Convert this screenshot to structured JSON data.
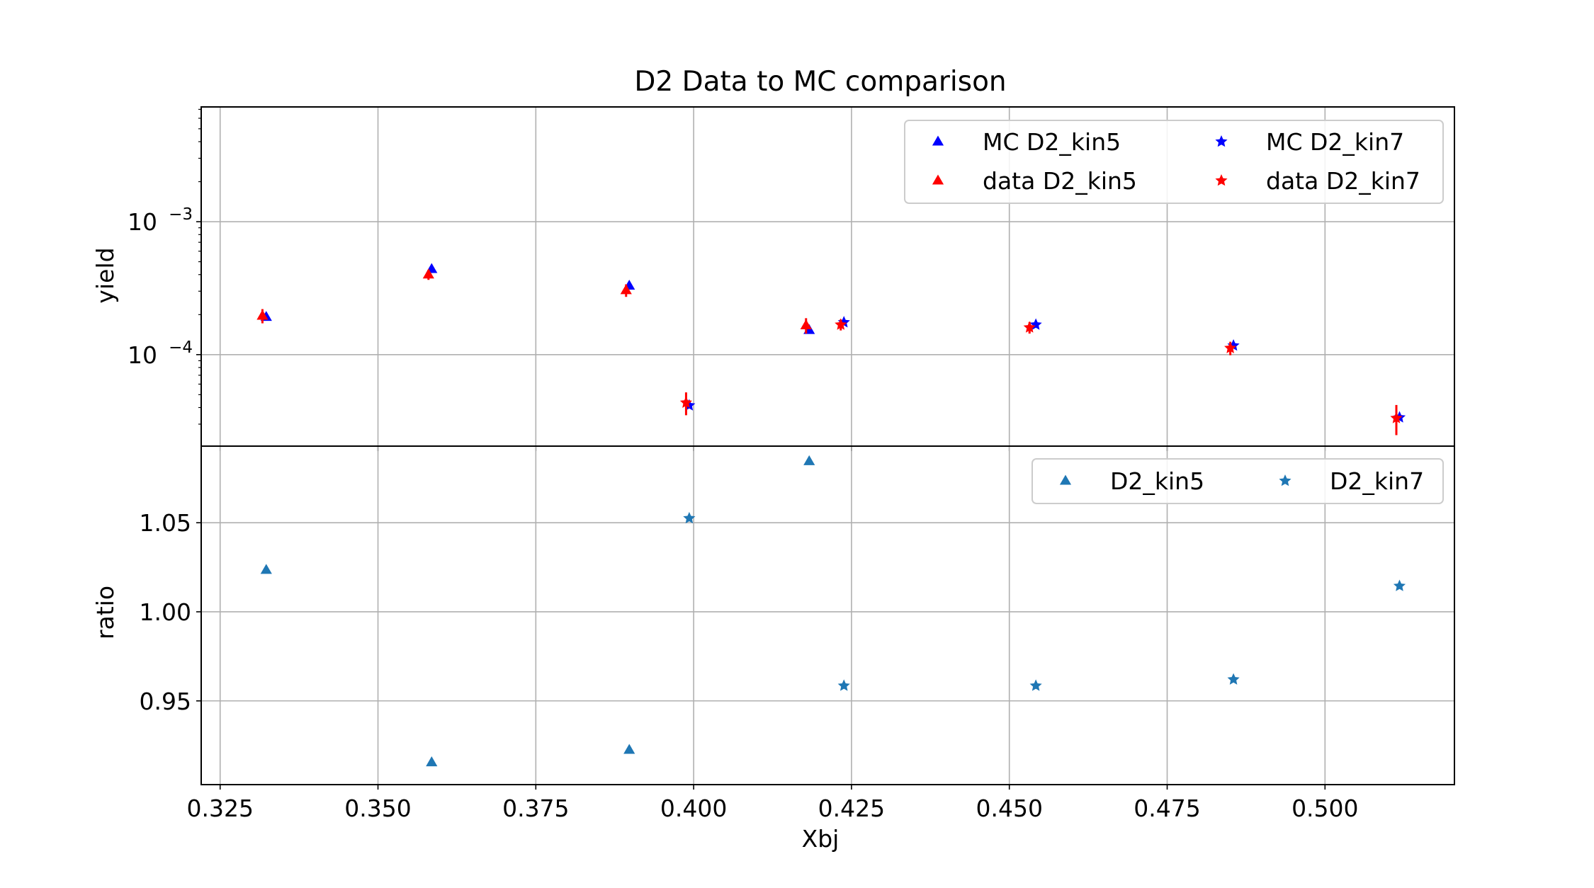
{
  "chart_data": [
    {
      "type": "scatter",
      "title": "D2 Data to MC comparison",
      "xlabel": "",
      "ylabel": "yield",
      "yscale": "log",
      "xlim": [
        0.322,
        0.5205
      ],
      "ylim": [
        2.05e-05,
        0.0073
      ],
      "yticks": [
        {
          "value": 0.001,
          "label": "10",
          "exp": "−3"
        },
        {
          "value": 0.0001,
          "label": "10",
          "exp": "−4"
        }
      ],
      "grid": true,
      "legend": "top-right, 2 columns",
      "series": [
        {
          "name": "MC D2_kin5",
          "marker": "triangle",
          "color": "#0000ff",
          "points": [
            [
              0.3323,
              0.000192
            ],
            [
              0.3585,
              0.00044
            ],
            [
              0.3898,
              0.00033
            ],
            [
              0.4183,
              0.000153
            ]
          ]
        },
        {
          "name": "data D2_kin5",
          "marker": "triangle",
          "color": "#ff0000",
          "points": [
            [
              0.3317,
              0.000196,
              2.4e-05
            ],
            [
              0.358,
              0.0004,
              3.5e-05
            ],
            [
              0.3893,
              0.000305,
              3.3e-05
            ],
            [
              0.4178,
              0.000166,
              2.2e-05
            ]
          ]
        },
        {
          "name": "MC D2_kin7",
          "marker": "star",
          "color": "#0000ff",
          "points": [
            [
              0.3993,
              4.15e-05
            ],
            [
              0.4238,
              0.000175
            ],
            [
              0.4542,
              0.000168
            ],
            [
              0.4855,
              0.000117
            ],
            [
              0.5118,
              3.37e-05
            ]
          ]
        },
        {
          "name": "data D2_kin7",
          "marker": "star",
          "color": "#ff0000",
          "points": [
            [
              0.3988,
              4.35e-05,
              8.5e-06
            ],
            [
              0.4233,
              0.000168,
              1.6e-05
            ],
            [
              0.4532,
              0.00016,
              1.6e-05
            ],
            [
              0.485,
              0.000112,
              1.3e-05
            ],
            [
              0.5113,
              3.33e-05,
              8.5e-06
            ]
          ]
        }
      ]
    },
    {
      "type": "scatter",
      "title": "",
      "xlabel": "Xbj",
      "ylabel": "ratio",
      "xlim": [
        0.322,
        0.5205
      ],
      "ylim": [
        0.903,
        1.093
      ],
      "xticks": [
        0.325,
        0.35,
        0.375,
        0.4,
        0.425,
        0.45,
        0.475,
        0.5
      ],
      "xtick_labels": [
        "0.325",
        "0.350",
        "0.375",
        "0.400",
        "0.425",
        "0.450",
        "0.475",
        "0.500"
      ],
      "yticks": [
        0.95,
        1.0,
        1.05
      ],
      "ytick_labels": [
        "0.95",
        "1.00",
        "1.05"
      ],
      "grid": true,
      "legend": "top-right, 2 columns",
      "series": [
        {
          "name": "D2_kin5",
          "marker": "triangle",
          "color": "#1f77b4",
          "points": [
            [
              0.3323,
              1.0235
            ],
            [
              0.3585,
              0.9155
            ],
            [
              0.3898,
              0.9225
            ],
            [
              0.4183,
              1.0845
            ]
          ]
        },
        {
          "name": "D2_kin7",
          "marker": "star",
          "color": "#1f77b4",
          "points": [
            [
              0.3993,
              1.0525
            ],
            [
              0.4238,
              0.9585
            ],
            [
              0.4542,
              0.9585
            ],
            [
              0.4855,
              0.962
            ],
            [
              0.5118,
              1.0145
            ]
          ]
        }
      ]
    }
  ]
}
